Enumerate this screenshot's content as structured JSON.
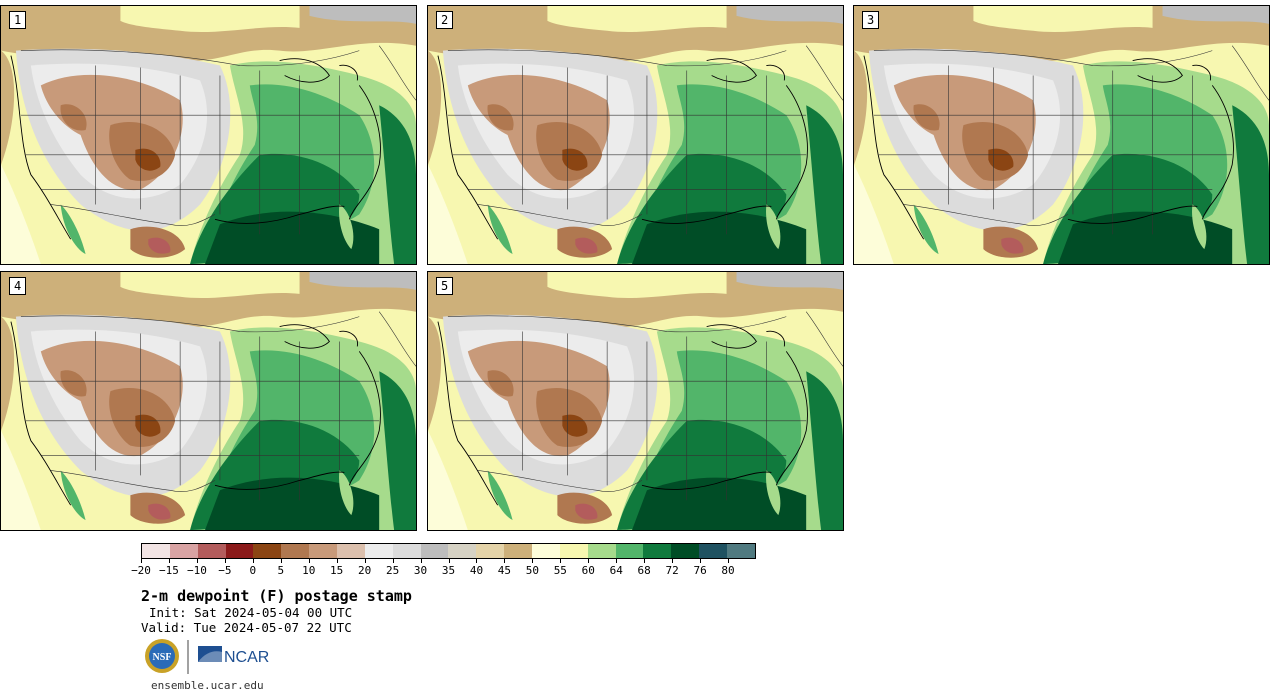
{
  "panels": [
    {
      "id": "p1",
      "label": "1"
    },
    {
      "id": "p2",
      "label": "2"
    },
    {
      "id": "p3",
      "label": "3"
    },
    {
      "id": "p4",
      "label": "4"
    },
    {
      "id": "p5",
      "label": "5"
    }
  ],
  "legend": {
    "colors": [
      "#f2e4e4",
      "#d9a3a3",
      "#b35c5c",
      "#8b1a1a",
      "#8b4513",
      "#b07850",
      "#c89a7a",
      "#dcc0ad",
      "#ececec",
      "#dcdcdc",
      "#bdbdbd",
      "#d6d2c4",
      "#e4d3a8",
      "#cdb07a",
      "#fdfdd9",
      "#f7f7b0",
      "#a6db8c",
      "#52b56a",
      "#107a3d",
      "#004d26",
      "#1f5261",
      "#507a80"
    ],
    "tick_labels": [
      "−20",
      "−15",
      "−10",
      "−5",
      "0",
      "5",
      "10",
      "15",
      "20",
      "25",
      "30",
      "35",
      "40",
      "45",
      "50",
      "55",
      "60",
      "64",
      "68",
      "72",
      "76",
      "80"
    ]
  },
  "title": "2-m dewpoint (F) postage stamp",
  "init": "Init: Sat 2024-05-04 00 UTC",
  "valid": "Valid: Tue 2024-05-07 22 UTC",
  "logos": {
    "nsf": "NSF",
    "ncar": "NCAR"
  },
  "site": "ensemble.ucar.edu"
}
